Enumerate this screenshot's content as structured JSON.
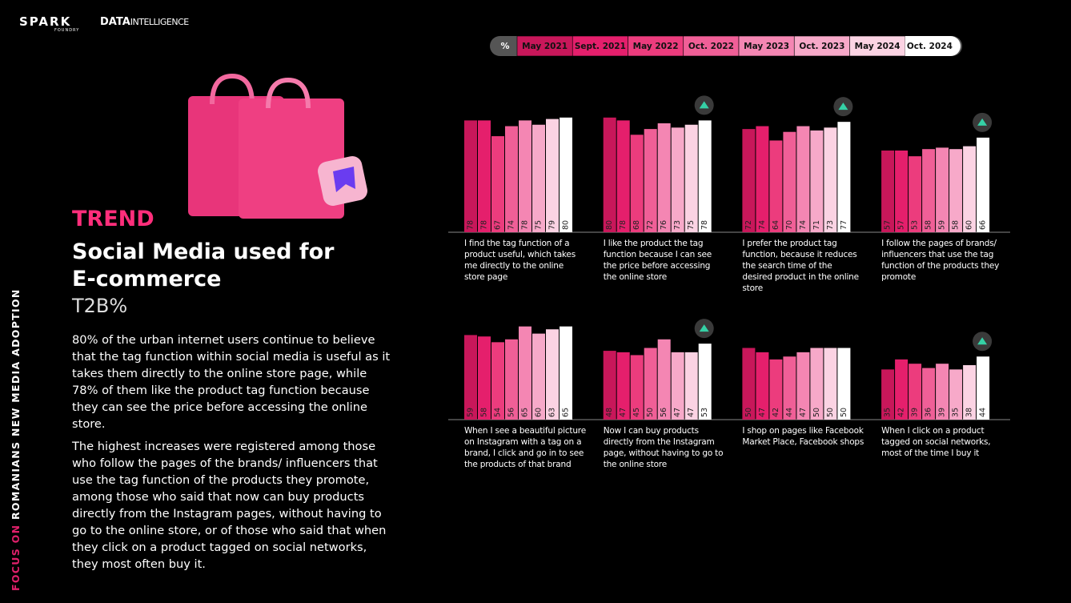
{
  "logos": {
    "brand": "SPARK",
    "brand_sub": "FOUNDRY",
    "partner": "DATA",
    "partner_sub": "INTELLIGENCE"
  },
  "side_label": {
    "prefix": "FOCUS ON",
    "text": "ROMANIANS NEW MEDIA ADOPTION"
  },
  "header": {
    "kicker": "TREND",
    "title": "Social Media used for E-commerce",
    "subtitle": "T2B%"
  },
  "paragraphs": [
    "80% of the urban internet users continue to believe that the tag function within social media is useful as it takes them directly to the online store page, while 78% of them like the product tag function because they can see the price before accessing the online store.",
    "The highest increases were registered among those who follow the pages of the brands/ influencers that use the tag function of the products they promote, among those who said that now can buy products directly from the Instagram pages, without having to go to the online store, or of those who said that when they click on a product tagged on social networks, they most often buy it."
  ],
  "legend": {
    "unit": "%",
    "periods": [
      "May 2021",
      "Sept. 2021",
      "May 2022",
      "Oct. 2022",
      "May 2023",
      "Oct. 2023",
      "May 2024",
      "Oct. 2024"
    ],
    "colors": [
      "#c8175a",
      "#e51f6c",
      "#ec3c7d",
      "#f05f97",
      "#f486b3",
      "#f7a9c9",
      "#fbd3e3",
      "#ffffff"
    ]
  },
  "chart_data": [
    {
      "type": "bar",
      "title": "I find the tag function of a product useful, which takes me directly to the online store page",
      "values": [
        78,
        78,
        67,
        74,
        78,
        75,
        79,
        80
      ],
      "increase": false
    },
    {
      "type": "bar",
      "title": "I like the product the tag function because I can see the price before accessing the online store",
      "values": [
        80,
        78,
        68,
        72,
        76,
        73,
        75,
        78
      ],
      "increase": true
    },
    {
      "type": "bar",
      "title": "I prefer the product tag function, because it reduces the search time of the desired product in the online store",
      "values": [
        72,
        74,
        64,
        70,
        74,
        71,
        73,
        77
      ],
      "increase": true
    },
    {
      "type": "bar",
      "title": "I follow the pages of brands/ influencers that use the tag function of the products they promote",
      "values": [
        57,
        57,
        53,
        58,
        59,
        58,
        60,
        66
      ],
      "increase": true
    },
    {
      "type": "bar",
      "title": "When I see a beautiful picture on Instagram with a tag on a brand, I click and go in to see the products of that brand",
      "values": [
        59,
        58,
        54,
        56,
        65,
        60,
        63,
        65
      ],
      "increase": false
    },
    {
      "type": "bar",
      "title": "Now I can buy products directly from the Instagram page, without having to go to the online store",
      "values": [
        48,
        47,
        45,
        50,
        56,
        47,
        47,
        53
      ],
      "increase": true
    },
    {
      "type": "bar",
      "title": "I shop on pages like Facebook Market Place, Facebook shops",
      "values": [
        50,
        47,
        42,
        44,
        47,
        50,
        50,
        50
      ],
      "increase": false
    },
    {
      "type": "bar",
      "title": "When I click on a product tagged on social networks, most of the time I buy it",
      "values": [
        35,
        42,
        39,
        36,
        39,
        35,
        38,
        44
      ],
      "increase": true
    }
  ]
}
